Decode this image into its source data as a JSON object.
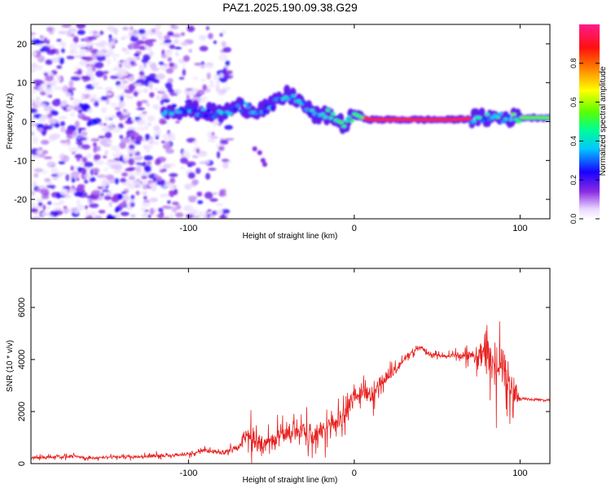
{
  "title": "PAZ1.2025.190.09.38.G29",
  "chart_data": [
    {
      "type": "heatmap",
      "xlabel": "Height of straight line (km)",
      "ylabel": "Frequency (Hz)",
      "xlim": [
        -195,
        118
      ],
      "ylim": [
        -25,
        25
      ],
      "x_ticks": [
        -100,
        0,
        100
      ],
      "y_ticks": [
        -20,
        -10,
        0,
        10,
        20
      ],
      "x_tick_labels": [
        "-100",
        "0",
        "100"
      ],
      "y_tick_labels": [
        "-20",
        "-10",
        "0",
        "10",
        "20"
      ],
      "colorbar": {
        "label": "Normalized spectral amplitude",
        "range": [
          0,
          1
        ],
        "ticks": [
          0.0,
          0.2,
          0.4,
          0.6,
          0.8
        ],
        "tick_labels": [
          "0.0",
          "0.2",
          "0.4",
          "0.6",
          "0.8"
        ],
        "colormap": "rainbow (white-purple-blue-cyan-green-yellow-red-magenta)"
      },
      "ridge": {
        "x": [
          -115,
          -100,
          -90,
          -80,
          -70,
          -60,
          -50,
          -40,
          -35,
          -30,
          -25,
          -20,
          -15,
          -10,
          -5,
          0,
          5,
          10,
          20,
          40,
          60,
          80,
          100,
          118
        ],
        "y": [
          3,
          3,
          2.5,
          2,
          4,
          3,
          4,
          7,
          6,
          4,
          2,
          1,
          2,
          0,
          -1,
          2,
          1,
          0.5,
          0.5,
          0.5,
          0.5,
          1,
          1,
          1
        ]
      }
    },
    {
      "type": "line",
      "xlabel": "Height of straight line (km)",
      "ylabel": "SNR (10 * v/v)",
      "xlim": [
        -195,
        118
      ],
      "ylim": [
        0,
        7500
      ],
      "x_ticks": [
        -100,
        0,
        100
      ],
      "y_ticks": [
        0,
        2000,
        4000,
        6000
      ],
      "x_tick_labels": [
        "-100",
        "0",
        "100"
      ],
      "y_tick_labels": [
        "0",
        "2000",
        "4000",
        "6000"
      ],
      "series": [
        {
          "color": "#e8201e",
          "x": [
            -195,
            -180,
            -170,
            -160,
            -150,
            -140,
            -130,
            -120,
            -110,
            -100,
            -90,
            -80,
            -70,
            -65,
            -60,
            -55,
            -50,
            -45,
            -40,
            -35,
            -30,
            -25,
            -20,
            -15,
            -10,
            -5,
            0,
            5,
            10,
            15,
            20,
            25,
            30,
            35,
            40,
            45,
            50,
            55,
            60,
            65,
            70,
            75,
            80,
            85,
            90,
            95,
            100,
            110,
            118
          ],
          "y": [
            220,
            250,
            300,
            200,
            250,
            260,
            280,
            300,
            320,
            360,
            500,
            420,
            600,
            1100,
            800,
            700,
            900,
            1200,
            1000,
            1300,
            1200,
            1100,
            1300,
            1400,
            1700,
            1900,
            2600,
            2700,
            2600,
            3100,
            3300,
            3600,
            4000,
            4300,
            4500,
            4200,
            4200,
            4100,
            4200,
            4150,
            4200,
            4000,
            4600,
            3800,
            3600,
            3000,
            2500,
            2450,
            2450
          ],
          "spread": [
            150,
            180,
            200,
            150,
            180,
            180,
            200,
            200,
            220,
            250,
            300,
            250,
            600,
            1300,
            1000,
            900,
            1100,
            1200,
            1200,
            1300,
            1300,
            1100,
            1200,
            1200,
            1200,
            1200,
            1200,
            1100,
            1000,
            900,
            700,
            600,
            500,
            400,
            300,
            300,
            250,
            300,
            300,
            500,
            800,
            1500,
            2800,
            3000,
            2800,
            2200,
            150,
            120,
            120
          ]
        }
      ]
    }
  ]
}
